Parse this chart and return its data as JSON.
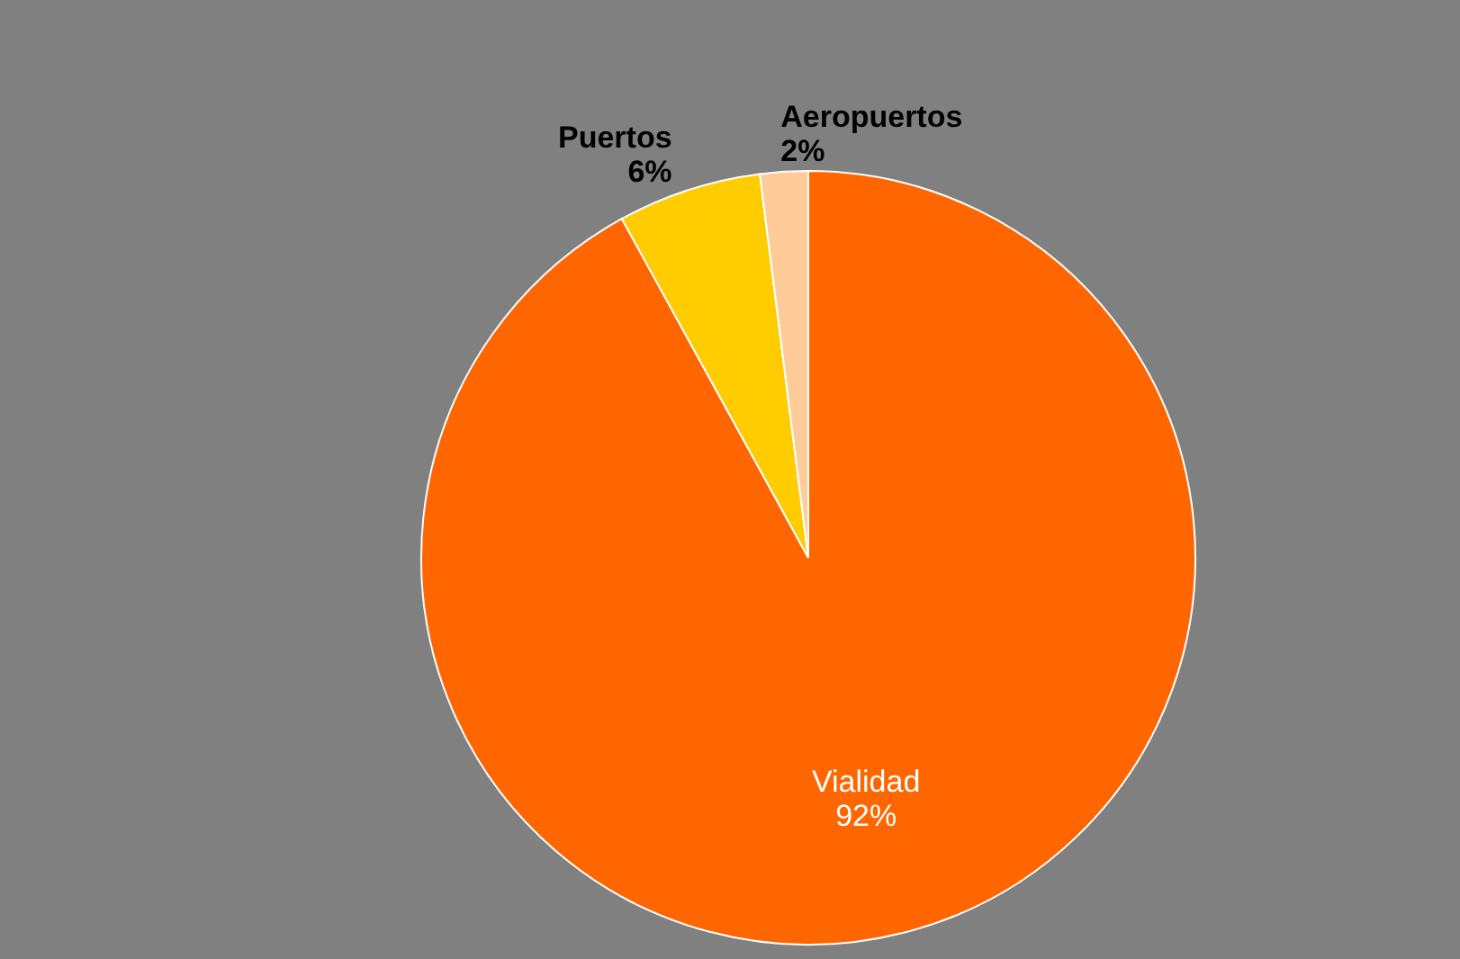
{
  "chart_data": {
    "type": "pie",
    "categories": [
      "Vialidad",
      "Puertos",
      "Aeropuertos"
    ],
    "values": [
      92,
      6,
      2
    ],
    "value_labels": [
      "92%",
      "6%",
      "2%"
    ],
    "colors": [
      "#ff6600",
      "#ffcc00",
      "#ffcc99"
    ]
  }
}
